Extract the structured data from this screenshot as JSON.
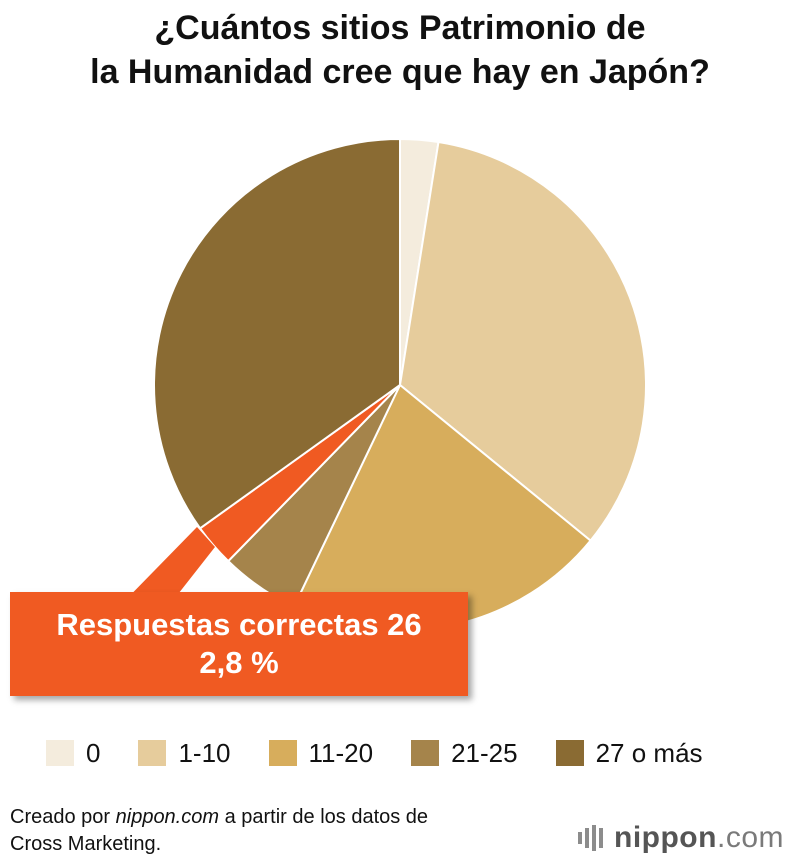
{
  "title": {
    "line1": "¿Cuántos sitios Patrimonio de",
    "line2": "la Humanidad cree que hay en Japón?"
  },
  "chart_data": {
    "type": "pie",
    "title": "¿Cuántos sitios Patrimonio de la Humanidad cree que hay en Japón?",
    "categories": [
      "0",
      "1-10",
      "11-20",
      "21-25",
      "Respuestas correctas 26",
      "27 o más"
    ],
    "values": [
      2.5,
      33.4,
      21.2,
      5.2,
      2.8,
      34.9
    ],
    "colors": [
      "#f4ecdd",
      "#e6cc9c",
      "#d7ad5c",
      "#a5844b",
      "#f05a22",
      "#8a6b33"
    ],
    "start_angle_deg": 0,
    "direction": "clockwise",
    "legend_position": "bottom"
  },
  "callout": {
    "line1": "Respuestas correctas 26",
    "line2": "2,8 %",
    "color": "#f05a22"
  },
  "legend": [
    {
      "label": "0",
      "color": "#f4ecdd"
    },
    {
      "label": "1-10",
      "color": "#e6cc9c"
    },
    {
      "label": "11-20",
      "color": "#d7ad5c"
    },
    {
      "label": "21-25",
      "color": "#a5844b"
    },
    {
      "label": "27 o más",
      "color": "#8a6b33"
    }
  ],
  "source": {
    "prefix": "Creado por ",
    "site": "nippon.com",
    "suffix": " a partir de los datos de",
    "line2": "Cross Marketing."
  },
  "logo": {
    "word": "nippon",
    "dot": ".",
    "tld": "com"
  }
}
